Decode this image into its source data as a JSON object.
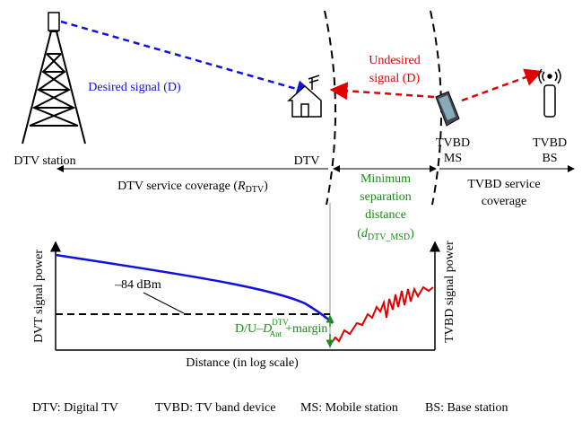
{
  "labels": {
    "desired": "Desired signal (D)",
    "undesired": [
      "Undesired",
      "signal (D)"
    ],
    "dtv_station": "DTV station",
    "dtv": "DTV",
    "tvbd_ms": [
      "TVBD",
      "MS"
    ],
    "tvbd_bs": [
      "TVBD",
      "BS"
    ],
    "dtv_coverage": {
      "text": "DTV service coverage (",
      "symbol": "R",
      "sub": "DTV",
      "close": ")"
    },
    "min_sep": {
      "lines": [
        "Minimum",
        "separation",
        "distance"
      ],
      "open": "(",
      "symbol": "d",
      "sub": "DTV_MSD",
      "close": ")"
    },
    "tvbd_coverage": [
      "TVBD service",
      "coverage"
    ],
    "threshold": "–84 dBm",
    "formula": {
      "text": "D/U–",
      "symbol": "D",
      "sup": "DTV",
      "sub": "Ant",
      "tail": "+margin"
    },
    "y_left": "DVT signal power",
    "y_right": "TVBD signal power",
    "x_axis": "Distance (in log scale)",
    "footer": [
      "DTV: Digital TV",
      "TVBD: TV band device",
      "MS: Mobile station",
      "BS: Base station"
    ]
  }
}
